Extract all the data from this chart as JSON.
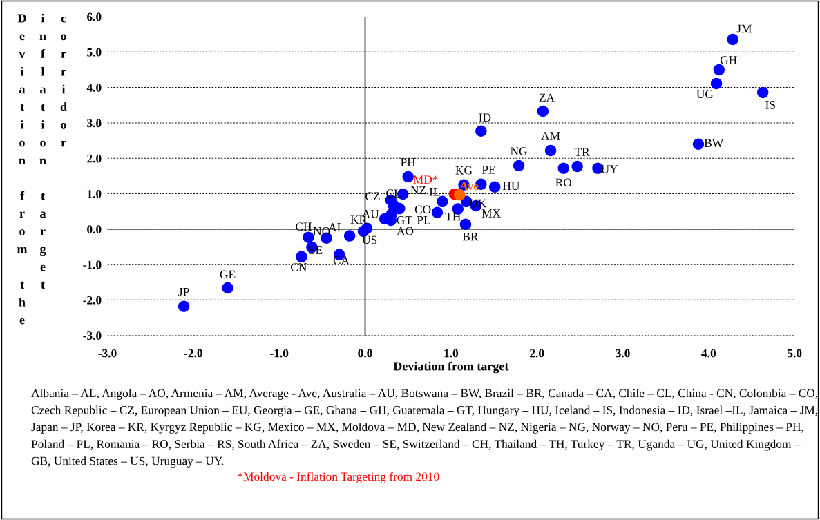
{
  "chart_data": {
    "type": "scatter",
    "xlabel": "Deviation from target",
    "ylabel": "Deviation from the inflation target corridor",
    "xlim": [
      -3.0,
      5.0
    ],
    "xticks": [
      {
        "value": -3,
        "label": "-3.0"
      },
      {
        "value": -2,
        "label": "-2.0"
      },
      {
        "value": -1,
        "label": "-1.0"
      },
      {
        "value": 0,
        "label": "0.0"
      },
      {
        "value": 1,
        "label": "1.0"
      },
      {
        "value": 2,
        "label": "2.0"
      },
      {
        "value": 3,
        "label": "3.0"
      },
      {
        "value": 4,
        "label": "4.0"
      },
      {
        "value": 5,
        "label": "5.0"
      }
    ],
    "ylim": [
      -3.0,
      6.0
    ],
    "yticks": [
      {
        "value": -3,
        "label": "-3.0"
      },
      {
        "value": -2,
        "label": "-2.0"
      },
      {
        "value": -1,
        "label": "-1.0"
      },
      {
        "value": 0,
        "label": "0.0"
      },
      {
        "value": 1,
        "label": "1.0"
      },
      {
        "value": 2,
        "label": "2.0"
      },
      {
        "value": 3,
        "label": "3.0"
      },
      {
        "value": 4,
        "label": "4.0"
      },
      {
        "value": 5,
        "label": "5.0"
      },
      {
        "value": 6,
        "label": "6.0"
      }
    ],
    "grid": "y",
    "marker": "circle",
    "series": [
      {
        "color": "#0000ff",
        "x": [
          4.28,
          4.12,
          4.09,
          4.63,
          3.88,
          2.07,
          1.35,
          2.16,
          1.79,
          2.47,
          2.31,
          2.71,
          0.5,
          1.15,
          1.35,
          1.51,
          0.44,
          0.9,
          1.18,
          1.29,
          1.08,
          0.84,
          1.17,
          0.3,
          0.33,
          0.23,
          0.3,
          0.31,
          0.4,
          -0.66,
          -0.45,
          -0.18,
          -0.02,
          0.02,
          -0.62,
          -0.74,
          -0.3,
          -1.6,
          -2.11
        ],
        "values": [
          5.36,
          4.5,
          4.11,
          3.86,
          2.4,
          3.33,
          2.77,
          2.22,
          1.79,
          1.77,
          1.72,
          1.72,
          1.48,
          1.25,
          1.27,
          1.19,
          0.99,
          0.78,
          0.78,
          0.66,
          0.57,
          0.47,
          0.14,
          0.82,
          0.68,
          0.29,
          0.25,
          0.43,
          0.58,
          -0.23,
          -0.25,
          -0.19,
          -0.06,
          0.02,
          -0.51,
          -0.78,
          -0.72,
          -1.66,
          -2.18
        ]
      },
      {
        "name": "MD*",
        "color": "#ff0000",
        "x": [
          1.04
        ],
        "values": [
          0.99
        ]
      },
      {
        "name": "Ave",
        "color": "#ff6600",
        "x": [
          1.1
        ],
        "values": [
          0.97
        ]
      }
    ],
    "annotations": [
      {
        "text": "JM",
        "x": 4.28,
        "y": 5.36
      },
      {
        "text": "GH",
        "x": 4.12,
        "y": 4.5
      },
      {
        "text": "UG",
        "x": 4.09,
        "y": 4.11
      },
      {
        "text": "IS",
        "x": 4.63,
        "y": 3.86
      },
      {
        "text": "BW",
        "x": 3.88,
        "y": 2.4
      },
      {
        "text": "ZA",
        "x": 2.07,
        "y": 3.33
      },
      {
        "text": "ID",
        "x": 1.35,
        "y": 2.77
      },
      {
        "text": "AM",
        "x": 2.16,
        "y": 2.22
      },
      {
        "text": "NG",
        "x": 1.79,
        "y": 1.79
      },
      {
        "text": "TR",
        "x": 2.47,
        "y": 1.77
      },
      {
        "text": "RO",
        "x": 2.31,
        "y": 1.72
      },
      {
        "text": "UY",
        "x": 2.71,
        "y": 1.72
      },
      {
        "text": "PH",
        "x": 0.5,
        "y": 1.48
      },
      {
        "text": "KG",
        "x": 1.15,
        "y": 1.25
      },
      {
        "text": "PE",
        "x": 1.35,
        "y": 1.27
      },
      {
        "text": "HU",
        "x": 1.51,
        "y": 1.19
      },
      {
        "text": "NZ",
        "x": 0.44,
        "y": 0.99
      },
      {
        "text": "IL",
        "x": 0.9,
        "y": 0.78
      },
      {
        "text": "UK",
        "x": 1.18,
        "y": 0.78
      },
      {
        "text": "MX",
        "x": 1.29,
        "y": 0.66
      },
      {
        "text": "TH",
        "x": 1.08,
        "y": 0.57
      },
      {
        "text": "PL",
        "x": 0.84,
        "y": 0.47
      },
      {
        "text": "CO",
        "x": 0.84,
        "y": 0.47
      },
      {
        "text": "BR",
        "x": 1.17,
        "y": 0.14
      },
      {
        "text": "CZ",
        "x": 0.3,
        "y": 0.82
      },
      {
        "text": "CL",
        "x": 0.33,
        "y": 0.68
      },
      {
        "text": "AU",
        "x": 0.23,
        "y": 0.29
      },
      {
        "text": "GT",
        "x": 0.3,
        "y": 0.25
      },
      {
        "text": "AO",
        "x": 0.31,
        "y": 0.43
      },
      {
        "text": "CH",
        "x": -0.66,
        "y": -0.23
      },
      {
        "text": "NO",
        "x": -0.45,
        "y": -0.25
      },
      {
        "text": "AL",
        "x": -0.18,
        "y": -0.19
      },
      {
        "text": "KR",
        "x": -0.02,
        "y": -0.06
      },
      {
        "text": "US",
        "x": 0.02,
        "y": 0.02
      },
      {
        "text": "SE",
        "x": -0.62,
        "y": -0.51
      },
      {
        "text": "CN",
        "x": -0.74,
        "y": -0.78
      },
      {
        "text": "CA",
        "x": -0.3,
        "y": -0.72
      },
      {
        "text": "GE",
        "x": -1.6,
        "y": -1.66
      },
      {
        "text": "JP",
        "x": -2.11,
        "y": -2.18
      },
      "Albania – AL, Angola – AO, Armenia – AM, Average - Ave, Australia – AU, Botswana – BW, Brazil – BR, Canada – CA, Chile – CL, China - CN, Colombia – CO, Czech Republic – CZ, European Union – EU, Georgia – GE, Ghana – GH, Guatemala – GT, Hungary – HU, Iceland – IS, Indonesia – ID, Israel –IL, Jamaica – JM, Japan – JP, Korea – KR, Kyrgyz Republic – KG, Mexico – MX, Moldova – MD, New Zealand – NZ, Nigeria – NG, Norway – NO, Peru – PE, Philippines – PH, Poland – PL, Romania – RO, Serbia – RS, South Africa – ZA, Sweden – SE, Switzerland – CH, Thailand – TH, Turkey – TR, Uganda – UG, United Kingdom – GB, United States – US, Uruguay – UY.",
      "*Moldova - Inflation Targeting from 2010"
    ]
  }
}
